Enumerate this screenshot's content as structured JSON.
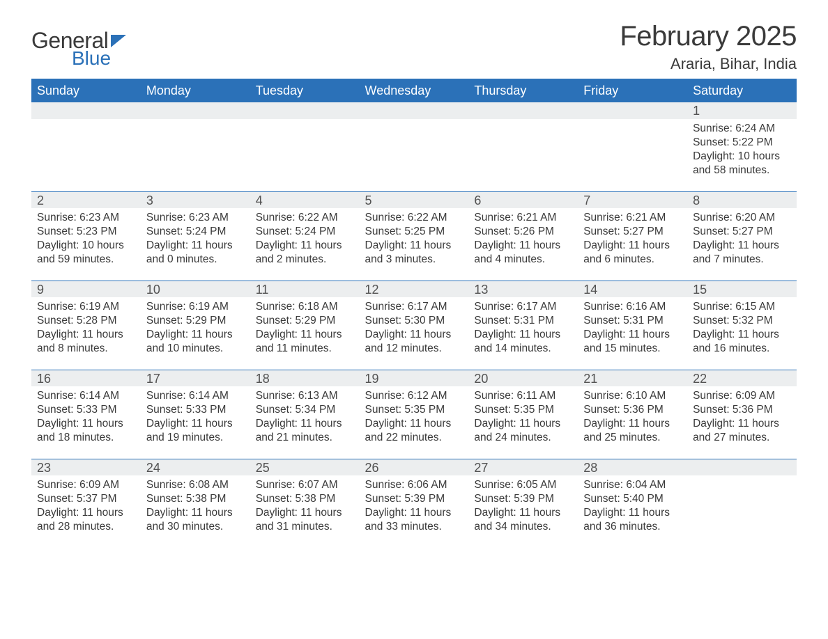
{
  "logo": {
    "text_general": "General",
    "text_blue": "Blue",
    "brand_color": "#2b71b8",
    "text_color": "#3a3a3a"
  },
  "title": {
    "month": "February 2025",
    "location": "Araria, Bihar, India"
  },
  "colors": {
    "header_bg": "#2b71b8",
    "header_text": "#ffffff",
    "daynum_bg": "#eceeef",
    "daynum_text": "#525252",
    "body_text": "#3a3a3a",
    "row_border": "#2b71b8",
    "page_bg": "#ffffff"
  },
  "typography": {
    "month_title_size": 40,
    "location_size": 22,
    "weekday_header_size": 18,
    "daynum_size": 18,
    "body_size": 15.5,
    "logo_general_size": 32,
    "logo_blue_size": 28
  },
  "weekdays": [
    "Sunday",
    "Monday",
    "Tuesday",
    "Wednesday",
    "Thursday",
    "Friday",
    "Saturday"
  ],
  "weeks": [
    [
      null,
      null,
      null,
      null,
      null,
      null,
      {
        "day": "1",
        "sunrise": "Sunrise: 6:24 AM",
        "sunset": "Sunset: 5:22 PM",
        "daylight": "Daylight: 10 hours and 58 minutes."
      }
    ],
    [
      {
        "day": "2",
        "sunrise": "Sunrise: 6:23 AM",
        "sunset": "Sunset: 5:23 PM",
        "daylight": "Daylight: 10 hours and 59 minutes."
      },
      {
        "day": "3",
        "sunrise": "Sunrise: 6:23 AM",
        "sunset": "Sunset: 5:24 PM",
        "daylight": "Daylight: 11 hours and 0 minutes."
      },
      {
        "day": "4",
        "sunrise": "Sunrise: 6:22 AM",
        "sunset": "Sunset: 5:24 PM",
        "daylight": "Daylight: 11 hours and 2 minutes."
      },
      {
        "day": "5",
        "sunrise": "Sunrise: 6:22 AM",
        "sunset": "Sunset: 5:25 PM",
        "daylight": "Daylight: 11 hours and 3 minutes."
      },
      {
        "day": "6",
        "sunrise": "Sunrise: 6:21 AM",
        "sunset": "Sunset: 5:26 PM",
        "daylight": "Daylight: 11 hours and 4 minutes."
      },
      {
        "day": "7",
        "sunrise": "Sunrise: 6:21 AM",
        "sunset": "Sunset: 5:27 PM",
        "daylight": "Daylight: 11 hours and 6 minutes."
      },
      {
        "day": "8",
        "sunrise": "Sunrise: 6:20 AM",
        "sunset": "Sunset: 5:27 PM",
        "daylight": "Daylight: 11 hours and 7 minutes."
      }
    ],
    [
      {
        "day": "9",
        "sunrise": "Sunrise: 6:19 AM",
        "sunset": "Sunset: 5:28 PM",
        "daylight": "Daylight: 11 hours and 8 minutes."
      },
      {
        "day": "10",
        "sunrise": "Sunrise: 6:19 AM",
        "sunset": "Sunset: 5:29 PM",
        "daylight": "Daylight: 11 hours and 10 minutes."
      },
      {
        "day": "11",
        "sunrise": "Sunrise: 6:18 AM",
        "sunset": "Sunset: 5:29 PM",
        "daylight": "Daylight: 11 hours and 11 minutes."
      },
      {
        "day": "12",
        "sunrise": "Sunrise: 6:17 AM",
        "sunset": "Sunset: 5:30 PM",
        "daylight": "Daylight: 11 hours and 12 minutes."
      },
      {
        "day": "13",
        "sunrise": "Sunrise: 6:17 AM",
        "sunset": "Sunset: 5:31 PM",
        "daylight": "Daylight: 11 hours and 14 minutes."
      },
      {
        "day": "14",
        "sunrise": "Sunrise: 6:16 AM",
        "sunset": "Sunset: 5:31 PM",
        "daylight": "Daylight: 11 hours and 15 minutes."
      },
      {
        "day": "15",
        "sunrise": "Sunrise: 6:15 AM",
        "sunset": "Sunset: 5:32 PM",
        "daylight": "Daylight: 11 hours and 16 minutes."
      }
    ],
    [
      {
        "day": "16",
        "sunrise": "Sunrise: 6:14 AM",
        "sunset": "Sunset: 5:33 PM",
        "daylight": "Daylight: 11 hours and 18 minutes."
      },
      {
        "day": "17",
        "sunrise": "Sunrise: 6:14 AM",
        "sunset": "Sunset: 5:33 PM",
        "daylight": "Daylight: 11 hours and 19 minutes."
      },
      {
        "day": "18",
        "sunrise": "Sunrise: 6:13 AM",
        "sunset": "Sunset: 5:34 PM",
        "daylight": "Daylight: 11 hours and 21 minutes."
      },
      {
        "day": "19",
        "sunrise": "Sunrise: 6:12 AM",
        "sunset": "Sunset: 5:35 PM",
        "daylight": "Daylight: 11 hours and 22 minutes."
      },
      {
        "day": "20",
        "sunrise": "Sunrise: 6:11 AM",
        "sunset": "Sunset: 5:35 PM",
        "daylight": "Daylight: 11 hours and 24 minutes."
      },
      {
        "day": "21",
        "sunrise": "Sunrise: 6:10 AM",
        "sunset": "Sunset: 5:36 PM",
        "daylight": "Daylight: 11 hours and 25 minutes."
      },
      {
        "day": "22",
        "sunrise": "Sunrise: 6:09 AM",
        "sunset": "Sunset: 5:36 PM",
        "daylight": "Daylight: 11 hours and 27 minutes."
      }
    ],
    [
      {
        "day": "23",
        "sunrise": "Sunrise: 6:09 AM",
        "sunset": "Sunset: 5:37 PM",
        "daylight": "Daylight: 11 hours and 28 minutes."
      },
      {
        "day": "24",
        "sunrise": "Sunrise: 6:08 AM",
        "sunset": "Sunset: 5:38 PM",
        "daylight": "Daylight: 11 hours and 30 minutes."
      },
      {
        "day": "25",
        "sunrise": "Sunrise: 6:07 AM",
        "sunset": "Sunset: 5:38 PM",
        "daylight": "Daylight: 11 hours and 31 minutes."
      },
      {
        "day": "26",
        "sunrise": "Sunrise: 6:06 AM",
        "sunset": "Sunset: 5:39 PM",
        "daylight": "Daylight: 11 hours and 33 minutes."
      },
      {
        "day": "27",
        "sunrise": "Sunrise: 6:05 AM",
        "sunset": "Sunset: 5:39 PM",
        "daylight": "Daylight: 11 hours and 34 minutes."
      },
      {
        "day": "28",
        "sunrise": "Sunrise: 6:04 AM",
        "sunset": "Sunset: 5:40 PM",
        "daylight": "Daylight: 11 hours and 36 minutes."
      },
      null
    ]
  ]
}
